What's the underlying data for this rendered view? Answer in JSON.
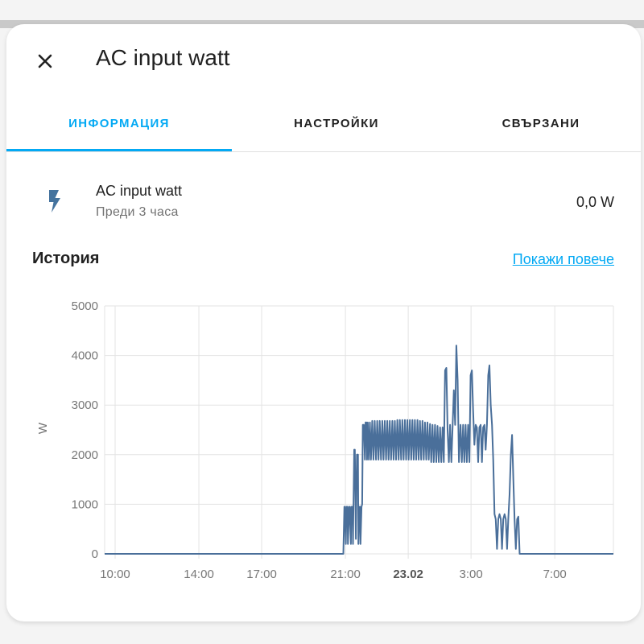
{
  "dialog": {
    "title": "AC input watt",
    "close_icon": "close-icon"
  },
  "tabs": [
    {
      "label": "ИНФОРМАЦИЯ",
      "active": true
    },
    {
      "label": "НАСТРОЙКИ",
      "active": false
    },
    {
      "label": "СВЪРЗАНИ",
      "active": false
    }
  ],
  "entity": {
    "icon": "flash-icon",
    "name": "AC input watt",
    "last_changed": "Преди 3 часа",
    "value": "0,0 W"
  },
  "history": {
    "title": "История",
    "show_more": "Покажи повече"
  },
  "colors": {
    "accent": "#03a9f4",
    "series": "#4a6f9a",
    "icon": "#44739e"
  },
  "chart_data": {
    "type": "line",
    "ylabel": "W",
    "ylim": [
      0,
      5000
    ],
    "y_ticks": [
      "0",
      "1000",
      "2000",
      "3000",
      "4000",
      "5000"
    ],
    "x_ticks": [
      {
        "label": "10:00",
        "bold": false
      },
      {
        "label": "14:00",
        "bold": false
      },
      {
        "label": "17:00",
        "bold": false
      },
      {
        "label": "21:00",
        "bold": false
      },
      {
        "label": "23.02",
        "bold": true
      },
      {
        "label": "3:00",
        "bold": false
      },
      {
        "label": "7:00",
        "bold": false
      }
    ],
    "x_ticks_hours": [
      10,
      14,
      17,
      21,
      24,
      27,
      31
    ],
    "x_range_hours": [
      9.5,
      33.8
    ],
    "series": [
      {
        "x_hours": [
          9.5,
          20.9,
          20.95,
          20.97,
          21.02,
          21.05,
          21.1,
          21.12,
          21.18,
          21.2,
          21.26,
          21.28,
          21.34,
          21.36,
          21.42,
          21.45,
          21.5,
          21.55,
          21.6,
          21.62,
          21.67,
          21.7,
          21.72,
          21.77,
          21.8,
          21.83,
          21.88,
          21.93,
          21.96,
          22.0,
          22.03,
          22.07,
          22.12,
          22.17,
          22.22,
          22.28,
          22.34,
          22.4,
          22.46,
          22.52,
          22.58,
          22.64,
          22.7,
          22.76,
          22.82,
          22.88,
          22.94,
          23.0,
          23.06,
          23.12,
          23.18,
          23.24,
          23.3,
          23.36,
          23.42,
          23.48,
          23.54,
          23.6,
          23.66,
          23.72,
          23.78,
          23.84,
          23.9,
          23.96,
          24.02,
          24.08,
          24.14,
          24.2,
          24.26,
          24.32,
          24.38,
          24.44,
          24.5,
          24.56,
          24.62,
          24.68,
          24.74,
          24.8,
          24.86,
          24.92,
          24.98,
          25.04,
          25.1,
          25.16,
          25.22,
          25.28,
          25.34,
          25.4,
          25.46,
          25.52,
          25.58,
          25.64,
          25.7,
          25.76,
          25.82,
          25.88,
          25.94,
          26.0,
          26.06,
          26.12,
          26.18,
          26.24,
          26.3,
          26.36,
          26.42,
          26.5,
          26.56,
          26.62,
          26.68,
          26.74,
          26.8,
          26.86,
          26.92,
          26.98,
          27.04,
          27.1,
          27.16,
          27.22,
          27.28,
          27.34,
          27.4,
          27.46,
          27.52,
          27.58,
          27.64,
          27.7,
          27.76,
          27.82,
          27.88,
          27.94,
          28.0,
          28.06,
          28.12,
          28.18,
          28.24,
          28.3,
          28.36,
          28.42,
          28.48,
          28.54,
          28.6,
          28.66,
          28.72,
          28.78,
          28.84,
          28.9,
          28.96,
          29.02,
          29.08,
          29.14,
          29.2,
          29.26,
          29.32,
          29.38,
          29.44,
          29.5,
          29.56,
          29.62,
          29.68,
          29.74,
          29.8,
          29.86,
          29.9,
          29.96,
          30.02,
          30.08,
          30.14,
          30.2,
          30.26,
          30.32,
          30.38,
          30.44,
          30.48,
          30.52,
          33.8
        ],
        "y": [
          0,
          0,
          950,
          950,
          200,
          950,
          950,
          200,
          950,
          950,
          200,
          950,
          950,
          200,
          2100,
          2100,
          300,
          2000,
          2000,
          200,
          950,
          950,
          200,
          950,
          1000,
          2600,
          2600,
          1900,
          2650,
          2650,
          1900,
          2650,
          1900,
          2650,
          1900,
          2680,
          1900,
          2680,
          1900,
          2680,
          1900,
          2680,
          1900,
          2680,
          1900,
          2680,
          1900,
          2680,
          1900,
          2680,
          1900,
          2680,
          1900,
          2680,
          1900,
          2700,
          1900,
          2700,
          1900,
          2700,
          1900,
          2700,
          1900,
          2700,
          1900,
          2700,
          1900,
          2700,
          1900,
          2700,
          1900,
          2700,
          1900,
          2680,
          1900,
          2680,
          1900,
          2650,
          1900,
          2650,
          1900,
          2620,
          1850,
          2600,
          1850,
          2600,
          1850,
          2580,
          1850,
          2550,
          1850,
          2550,
          1850,
          3700,
          3750,
          2500,
          1850,
          2600,
          1850,
          2600,
          3300,
          2600,
          4200,
          3500,
          1850,
          2600,
          1850,
          2600,
          1850,
          2600,
          1850,
          2600,
          1850,
          3600,
          3700,
          2900,
          2200,
          2600,
          2550,
          1850,
          2550,
          2600,
          1850,
          2550,
          2600,
          2100,
          2600,
          3600,
          3800,
          3000,
          2600,
          1900,
          800,
          700,
          100,
          700,
          800,
          700,
          100,
          700,
          800,
          700,
          100,
          700,
          1200,
          2000,
          2400,
          1500,
          700,
          100,
          700,
          750,
          0,
          0,
          0,
          0,
          0,
          0,
          0,
          0,
          0,
          0,
          0,
          0,
          0,
          0,
          0,
          0,
          0,
          0,
          0,
          0,
          0,
          0,
          0
        ]
      }
    ]
  }
}
